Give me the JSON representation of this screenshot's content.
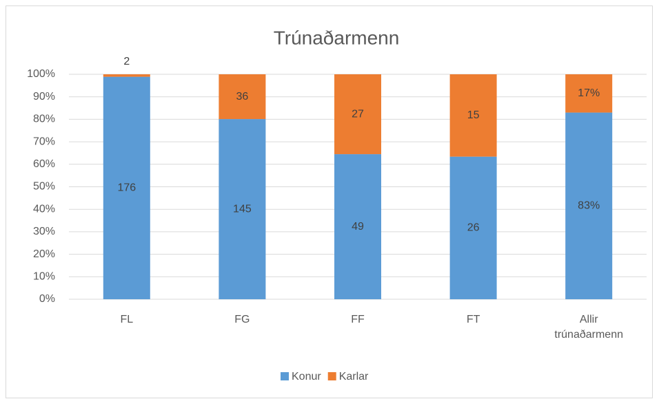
{
  "chart_data": {
    "type": "stacked_bar_100",
    "title": "Trúnaðarmenn",
    "categories": [
      "FL",
      "FG",
      "FF",
      "FT",
      "Allir trúnaðarmenn"
    ],
    "series": [
      {
        "name": "Konur",
        "color": "#5b9bd5",
        "values": [
          98.9,
          80.1,
          64.5,
          63.4,
          83
        ],
        "labels": [
          "176",
          "145",
          "49",
          "26",
          "83%"
        ]
      },
      {
        "name": "Karlar",
        "color": "#ed7d31",
        "values": [
          1.1,
          19.9,
          35.5,
          36.6,
          17
        ],
        "labels": [
          "2",
          "36",
          "27",
          "15",
          "17%"
        ]
      }
    ],
    "ylim": [
      0,
      100
    ],
    "yticks": [
      {
        "value": 0,
        "label": "0%"
      },
      {
        "value": 10,
        "label": "10%"
      },
      {
        "value": 20,
        "label": "20%"
      },
      {
        "value": 30,
        "label": "30%"
      },
      {
        "value": 40,
        "label": "40%"
      },
      {
        "value": 50,
        "label": "50%"
      },
      {
        "value": 60,
        "label": "60%"
      },
      {
        "value": 70,
        "label": "70%"
      },
      {
        "value": 80,
        "label": "80%"
      },
      {
        "value": 90,
        "label": "90%"
      },
      {
        "value": 100,
        "label": "100%"
      }
    ],
    "grid": true,
    "legend": "bottom"
  }
}
